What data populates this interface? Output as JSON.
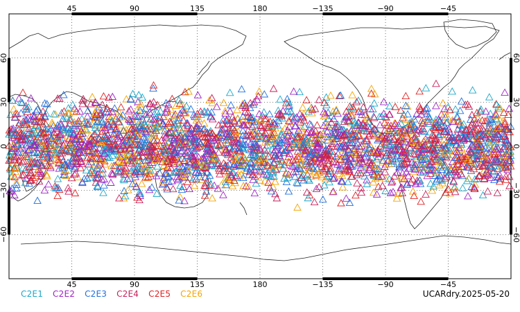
{
  "map": {
    "projection": "cylindrical-equidistant",
    "lon_range": [
      0,
      360
    ],
    "lat_range": [
      -90,
      90
    ],
    "grid": "dotted",
    "top_ticks": [
      "45",
      "90",
      "135",
      "180",
      "−135",
      "−90",
      "−45"
    ],
    "bottom_ticks": [
      "45",
      "90",
      "135",
      "180",
      "−135",
      "−90",
      "−45"
    ],
    "left_ticks": [
      "60",
      "30",
      "0",
      "−30",
      "−60"
    ],
    "right_ticks": [
      "60",
      "30",
      "0",
      "−30",
      "−60"
    ],
    "marker": "open-triangle",
    "observation_lat_band": [
      -45,
      45
    ]
  },
  "legend": {
    "items": [
      {
        "label": "C2E1",
        "color": "#19a7c9"
      },
      {
        "label": "C2E2",
        "color": "#a020c8"
      },
      {
        "label": "C2E3",
        "color": "#1f6fe0"
      },
      {
        "label": "C2E4",
        "color": "#c81e5a"
      },
      {
        "label": "C2E5",
        "color": "#e02020"
      },
      {
        "label": "C2E6",
        "color": "#f5a400"
      }
    ]
  },
  "caption": "UCARdry.2025-05-20"
}
